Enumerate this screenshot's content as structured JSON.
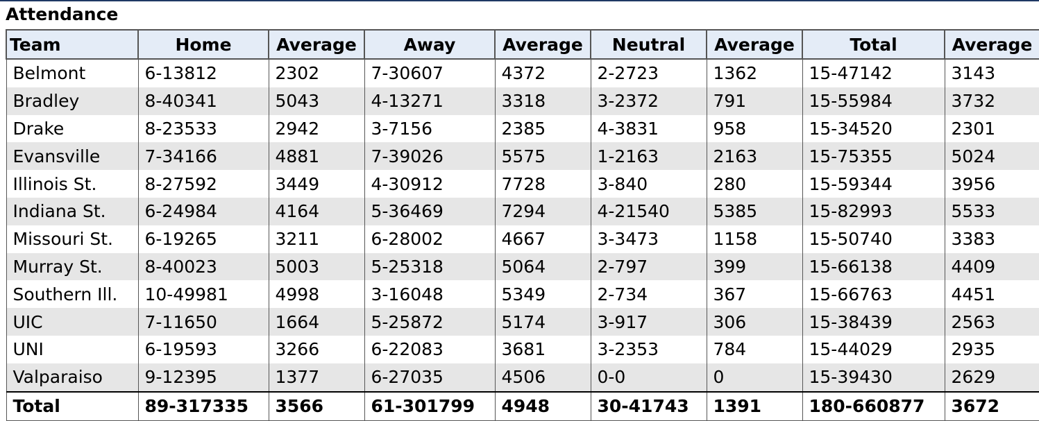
{
  "title": "Attendance",
  "table": {
    "columns": [
      "Team",
      "Home",
      "Average",
      "Away",
      "Average",
      "Neutral",
      "Average",
      "Total",
      "Average"
    ],
    "rows": [
      [
        "Belmont",
        "6-13812",
        "2302",
        "7-30607",
        "4372",
        "2-2723",
        "1362",
        "15-47142",
        "3143"
      ],
      [
        "Bradley",
        "8-40341",
        "5043",
        "4-13271",
        "3318",
        "3-2372",
        "791",
        "15-55984",
        "3732"
      ],
      [
        "Drake",
        "8-23533",
        "2942",
        "3-7156",
        "2385",
        "4-3831",
        "958",
        "15-34520",
        "2301"
      ],
      [
        "Evansville",
        "7-34166",
        "4881",
        "7-39026",
        "5575",
        "1-2163",
        "2163",
        "15-75355",
        "5024"
      ],
      [
        "Illinois St.",
        "8-27592",
        "3449",
        "4-30912",
        "7728",
        "3-840",
        "280",
        "15-59344",
        "3956"
      ],
      [
        "Indiana St.",
        "6-24984",
        "4164",
        "5-36469",
        "7294",
        "4-21540",
        "5385",
        "15-82993",
        "5533"
      ],
      [
        "Missouri St.",
        "6-19265",
        "3211",
        "6-28002",
        "4667",
        "3-3473",
        "1158",
        "15-50740",
        "3383"
      ],
      [
        "Murray St.",
        "8-40023",
        "5003",
        "5-25318",
        "5064",
        "2-797",
        "399",
        "15-66138",
        "4409"
      ],
      [
        "Southern Ill.",
        "10-49981",
        "4998",
        "3-16048",
        "5349",
        "2-734",
        "367",
        "15-66763",
        "4451"
      ],
      [
        "UIC",
        "7-11650",
        "1664",
        "5-25872",
        "5174",
        "3-917",
        "306",
        "15-38439",
        "2563"
      ],
      [
        "UNI",
        "6-19593",
        "3266",
        "6-22083",
        "3681",
        "3-2353",
        "784",
        "15-44029",
        "2935"
      ],
      [
        "Valparaiso",
        "9-12395",
        "1377",
        "6-27035",
        "4506",
        "0-0",
        "0",
        "15-39430",
        "2629"
      ]
    ],
    "total": [
      "Total",
      "89-317335",
      "3566",
      "61-301799",
      "4948",
      "30-41743",
      "1391",
      "180-660877",
      "3672"
    ]
  }
}
